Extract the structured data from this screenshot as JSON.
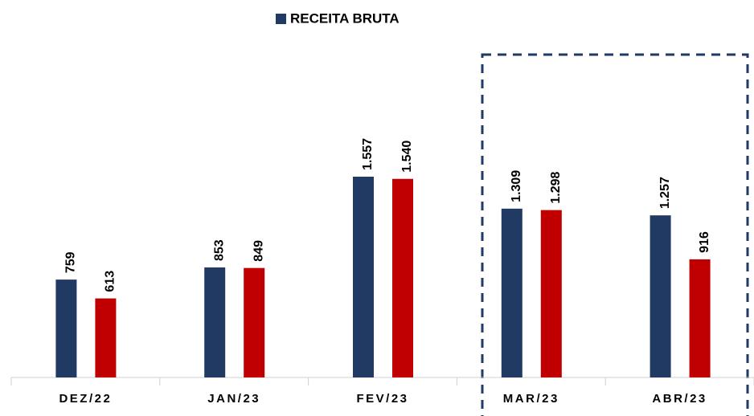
{
  "chart_data": {
    "type": "bar",
    "categories": [
      "DEZ/22",
      "JAN/23",
      "FEV/23",
      "MAR/23",
      "ABR/23"
    ],
    "series": [
      {
        "name": "RECEITA BRUTA",
        "color": "#213a64",
        "values": [
          759,
          853,
          1557,
          1309,
          1257
        ],
        "value_labels": [
          "759",
          "853",
          "1.557",
          "1.309",
          "1.257"
        ]
      },
      {
        "color": "#c00000",
        "values": [
          613,
          849,
          1540,
          1298,
          916
        ],
        "value_labels": [
          "613",
          "849",
          "1.540",
          "1.298",
          "916"
        ]
      }
    ]
  }
}
